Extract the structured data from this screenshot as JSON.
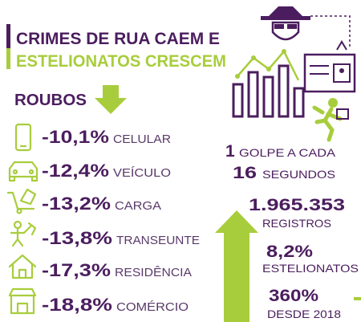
{
  "title": [
    "CRIMES DE RUA CAEM E",
    "ESTELIONATOS CRESCEM"
  ],
  "section": "ROUBOS",
  "items": [
    {
      "value": "-10,1%",
      "label": "CELULAR"
    },
    {
      "value": "-12,4%",
      "label": "VEÍCULO"
    },
    {
      "value": "-13,2%",
      "label": "CARGA"
    },
    {
      "value": "-13,8%",
      "label": "TRANSEUNTE"
    },
    {
      "value": "-17,3%",
      "label": "RESIDÊNCIA"
    },
    {
      "value": "-18,8%",
      "label": "COMÉRCIO"
    }
  ],
  "stats": {
    "golpe": {
      "count": "1",
      "text": "GOLPE A CADA",
      "interval": "16",
      "unit": "SEGUNDOS"
    },
    "registros": {
      "value": "1.965.353",
      "label": "REGISTROS"
    },
    "estelionatos": {
      "value": "8,2%",
      "label": "ESTELIONATOS"
    },
    "crescimento": {
      "value": "360%",
      "label": "DESDE 2018"
    }
  }
}
